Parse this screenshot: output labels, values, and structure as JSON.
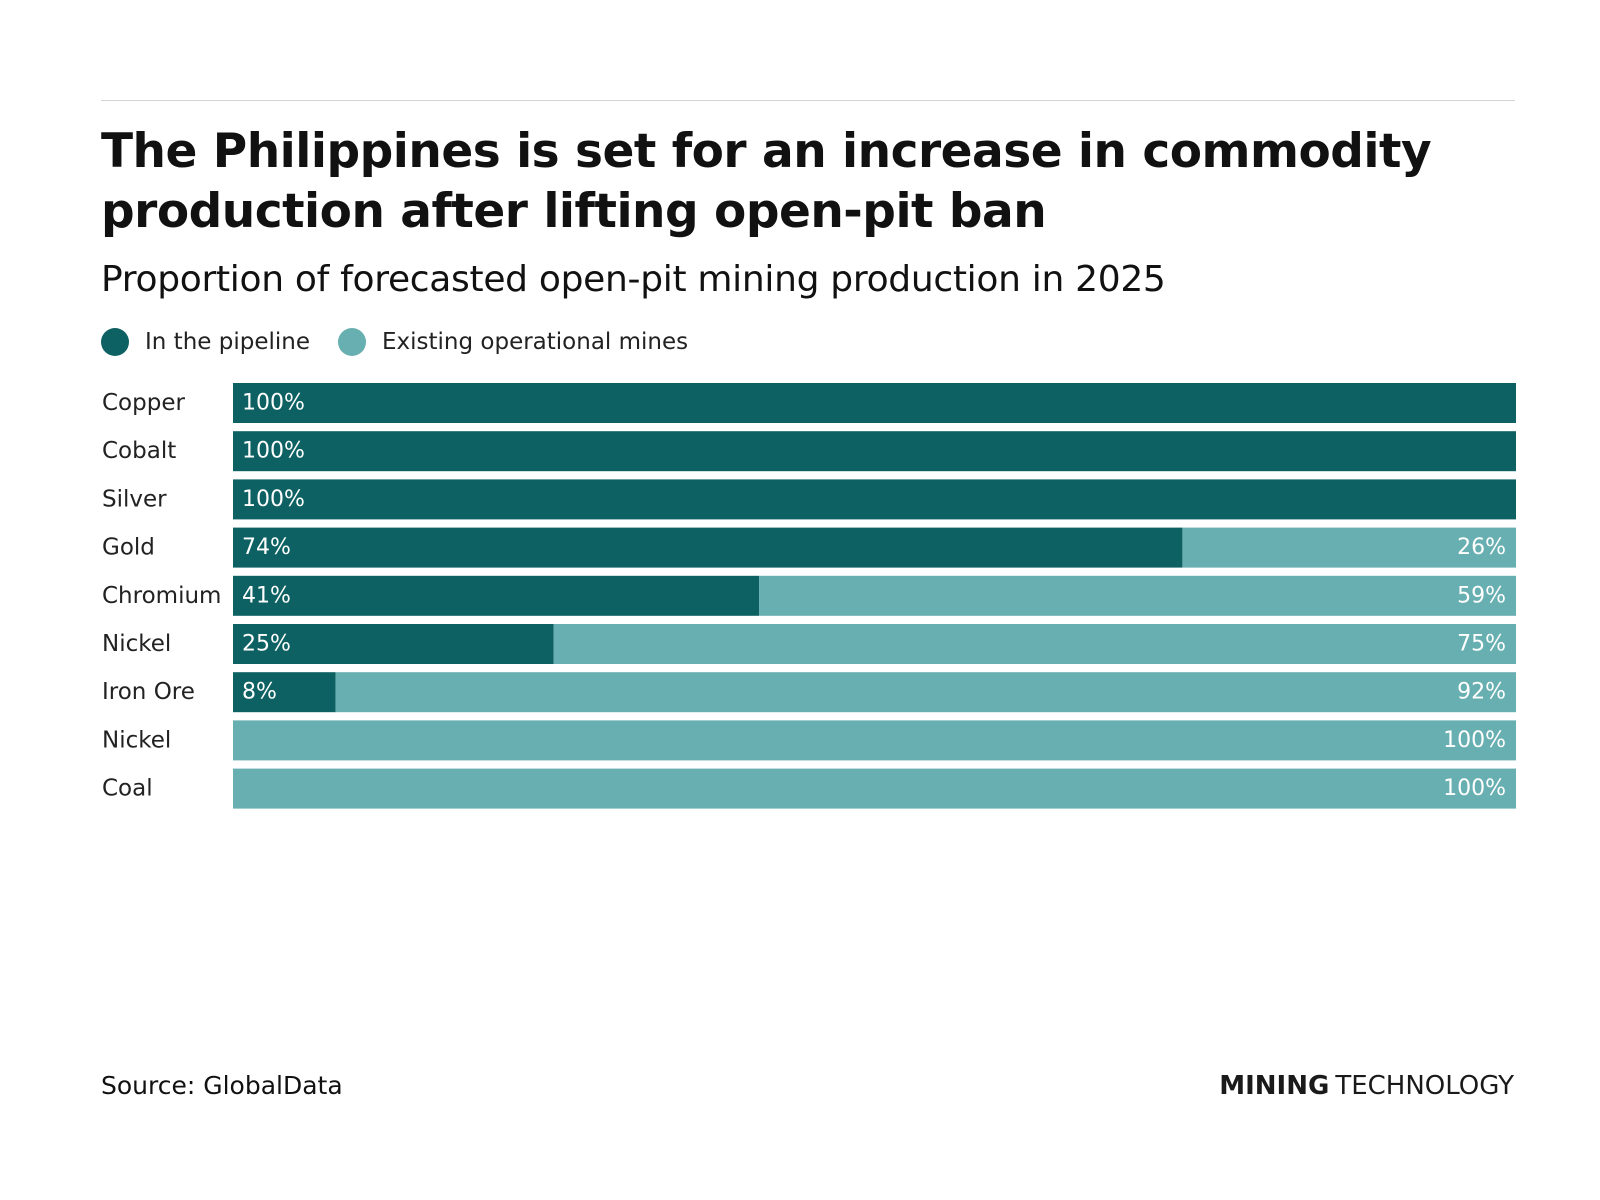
{
  "header": {
    "title": "The Philippines is set for an increase in commodity production after lifting open-pit ban",
    "subtitle": "Proportion of forecasted open-pit mining production in 2025"
  },
  "legend": {
    "items": [
      {
        "label": "In the pipeline",
        "color": "#0e6163"
      },
      {
        "label": "Existing operational mines",
        "color": "#68afb1"
      }
    ]
  },
  "chart_data": {
    "type": "bar",
    "orientation": "horizontal",
    "stacked": true,
    "categories": [
      "Copper",
      "Cobalt",
      "Silver",
      "Gold",
      "Chromium",
      "Nickel",
      "Iron Ore",
      "Nickel",
      "Coal"
    ],
    "series": [
      {
        "name": "In the pipeline",
        "color": "#0e6163",
        "values": [
          100,
          100,
          100,
          74,
          41,
          25,
          8,
          0,
          0
        ],
        "labels": [
          "100%",
          "100%",
          "100%",
          "74%",
          "41%",
          "25%",
          "8%",
          "",
          ""
        ]
      },
      {
        "name": "Existing operational mines",
        "color": "#68afb1",
        "values": [
          0,
          0,
          0,
          26,
          59,
          75,
          92,
          100,
          100
        ],
        "labels": [
          "",
          "",
          "",
          "26%",
          "59%",
          "75%",
          "92%",
          "100%",
          "100%"
        ]
      }
    ],
    "xlim": [
      0,
      100
    ],
    "title": "Proportion of forecasted open-pit mining production in 2025",
    "xlabel": "",
    "ylabel": "",
    "grid": false,
    "legend_position": "top-left"
  },
  "footer": {
    "source": "Source: GlobalData",
    "logo_strong": "MINING",
    "logo_light": "TECHNOLOGY"
  }
}
